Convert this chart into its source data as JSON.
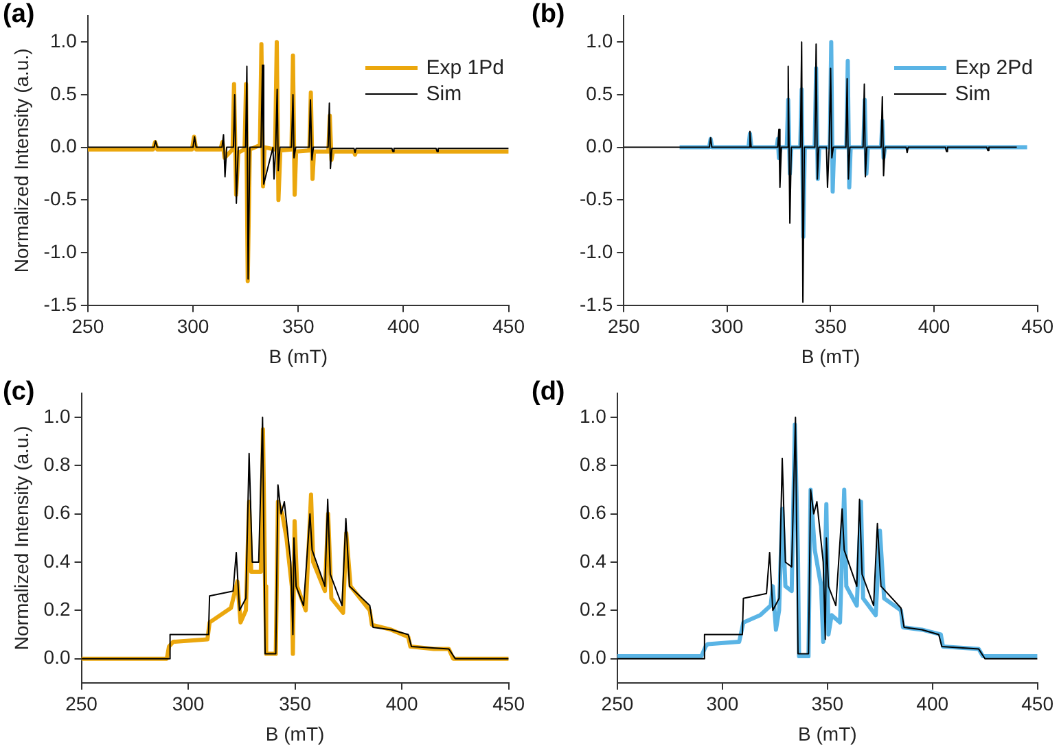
{
  "chart_data": [
    {
      "type": "line",
      "title": "(a)",
      "xlabel": "B (mT)",
      "ylabel": "Normalized Intensity (a.u.)",
      "xlim": [
        250,
        450
      ],
      "xticks": [
        250,
        300,
        350,
        400,
        450
      ],
      "ylim": [
        -1.5,
        1.25
      ],
      "yticks": [
        {
          "value": -1.5,
          "label": "-1.5"
        },
        {
          "value": -1,
          "label": "-1.0"
        },
        {
          "value": -0.5,
          "label": "-0.5"
        },
        {
          "value": 0,
          "label": "0.0"
        },
        {
          "value": 0.5,
          "label": "0.5"
        },
        {
          "value": 1,
          "label": "1.0"
        }
      ],
      "grid": false,
      "legend": "top right",
      "series": [
        {
          "name": "Exp 1Pd",
          "color": "#eba70d",
          "x": [
            250,
            281,
            282,
            283,
            299.5,
            300.5,
            301.5,
            313,
            314,
            315,
            318.8,
            319.5,
            320.5,
            321.5,
            324.5,
            325.2,
            326,
            327,
            331.8,
            332.5,
            333.3,
            334,
            339,
            339.8,
            340.6,
            341.5,
            346.8,
            347.5,
            348.3,
            349,
            355.3,
            356,
            356.8,
            357.5,
            364.3,
            365,
            365.8,
            366.5,
            376.5,
            377,
            377.5,
            450
          ],
          "values": [
            -0.02,
            -0.02,
            0.05,
            -0.02,
            -0.02,
            0.1,
            -0.02,
            -0.02,
            0.05,
            -0.1,
            -0.02,
            0.6,
            -0.45,
            -0.05,
            -0.02,
            0.6,
            -1.27,
            -0.02,
            0.02,
            0.98,
            -0.37,
            0,
            -0.02,
            1.0,
            -0.5,
            -0.03,
            -0.02,
            0.87,
            -0.45,
            -0.04,
            -0.03,
            0.52,
            -0.3,
            -0.04,
            -0.04,
            0.3,
            -0.12,
            -0.04,
            -0.04,
            -0.07,
            -0.04,
            -0.04
          ]
        },
        {
          "name": "Sim",
          "color": "#000000",
          "x": [
            250,
            281.5,
            282.2,
            283,
            300,
            300.7,
            301.5,
            313.8,
            314.5,
            315.2,
            316,
            319.2,
            319.8,
            320.6,
            321.5,
            325,
            325.6,
            326.2,
            327,
            332.3,
            333,
            333.6,
            338,
            338.5,
            339.3,
            340,
            340.5,
            341.3,
            346.8,
            347.5,
            348,
            348.8,
            355.2,
            355.8,
            356.5,
            357.2,
            364.2,
            364.8,
            365.3,
            366,
            376.5,
            377,
            377.5,
            394.5,
            395,
            395.5,
            415.5,
            416,
            416.5,
            450
          ],
          "values": [
            0,
            0,
            0.06,
            0,
            0,
            0.1,
            0,
            0,
            0.12,
            -0.28,
            0,
            0,
            0.5,
            -0.53,
            0,
            0,
            0.77,
            -1.25,
            0,
            0,
            0.78,
            -0.35,
            0,
            -0.3,
            0,
            0.55,
            -0.22,
            0,
            0,
            0.5,
            -0.1,
            0,
            0,
            0.45,
            -0.12,
            0,
            0,
            0.42,
            -0.2,
            -0.01,
            -0.01,
            -0.05,
            -0.01,
            -0.01,
            -0.04,
            -0.01,
            -0.01,
            -0.04,
            -0.01,
            -0.01
          ]
        }
      ]
    },
    {
      "type": "line",
      "title": "(b)",
      "xlabel": "B (mT)",
      "xlim": [
        250,
        450
      ],
      "xticks": [
        250,
        300,
        350,
        400,
        450
      ],
      "ylim": [
        -1.5,
        1.25
      ],
      "yticks": [
        {
          "value": -1.5,
          "label": "-1.5"
        },
        {
          "value": -1,
          "label": "-1.0"
        },
        {
          "value": -0.5,
          "label": "-0.5"
        },
        {
          "value": 0,
          "label": "0.0"
        },
        {
          "value": 0.5,
          "label": "0.5"
        },
        {
          "value": 1,
          "label": "1.0"
        }
      ],
      "grid": false,
      "legend": "top right",
      "series": [
        {
          "name": "Exp 2Pd",
          "color": "#5ab4e5",
          "x": [
            277,
            291.3,
            292,
            292.7,
            310.3,
            311,
            311.7,
            324,
            324.5,
            325,
            325.7,
            328.8,
            329.5,
            330.3,
            331,
            335.3,
            336,
            336.8,
            337.5,
            342.3,
            343,
            343.8,
            344.5,
            349.6,
            350.3,
            351,
            351.7,
            357.6,
            358.3,
            359,
            359.7,
            365.8,
            366.5,
            367.3,
            368,
            374.4,
            375,
            375.6,
            376.3,
            445
          ],
          "values": [
            0,
            0,
            0.08,
            0,
            0,
            0.13,
            0,
            0,
            0.08,
            -0.1,
            0,
            0,
            0.45,
            -0.25,
            0,
            0,
            0.55,
            -0.85,
            0,
            0,
            0.75,
            -0.3,
            0,
            0,
            1.0,
            -0.42,
            0,
            0,
            0.82,
            -0.38,
            0,
            0,
            0.45,
            -0.25,
            0,
            0,
            0.25,
            -0.1,
            0,
            0
          ]
        },
        {
          "name": "Sim",
          "color": "#000000",
          "x": [
            250,
            291.4,
            292,
            292.6,
            310.4,
            311,
            311.6,
            324.4,
            325,
            325.5,
            326.2,
            329,
            329.5,
            330.3,
            331,
            335.4,
            336,
            336.6,
            337.3,
            342.4,
            343,
            343.6,
            344.3,
            348,
            348.5,
            349.3,
            350,
            350.6,
            351.3,
            357.4,
            358,
            358.6,
            359.3,
            365.7,
            366.3,
            366.8,
            367.5,
            374.4,
            375,
            375.6,
            376.3,
            386.5,
            387,
            387.5,
            405.5,
            406,
            406.5,
            425.5,
            426,
            426.5,
            440
          ],
          "values": [
            0,
            0,
            0.09,
            0,
            0,
            0.15,
            0,
            0,
            0.17,
            -0.38,
            0,
            0,
            0.77,
            -0.72,
            0,
            0,
            1.0,
            -1.47,
            0,
            0,
            0.98,
            -0.3,
            0,
            0,
            -0.38,
            0,
            0.75,
            -0.1,
            0,
            0,
            0.65,
            -0.3,
            0,
            0,
            0.6,
            -0.28,
            0,
            0,
            0.48,
            -0.27,
            0,
            0,
            -0.05,
            0,
            0,
            -0.04,
            0,
            0,
            -0.03,
            0,
            0
          ]
        }
      ]
    },
    {
      "type": "line",
      "title": "(c)",
      "xlabel": "B (mT)",
      "ylabel": "Normalized Intensity (a.u.)",
      "xlim": [
        250,
        450
      ],
      "xticks": [
        250,
        300,
        350,
        400,
        450
      ],
      "ylim": [
        -0.1,
        1.1
      ],
      "yticks": [
        {
          "value": 0,
          "label": "0.0"
        },
        {
          "value": 0.2,
          "label": "0.2"
        },
        {
          "value": 0.4,
          "label": "0.4"
        },
        {
          "value": 0.6,
          "label": "0.6"
        },
        {
          "value": 0.8,
          "label": "0.8"
        },
        {
          "value": 1,
          "label": "1.0"
        }
      ],
      "grid": false,
      "series": [
        {
          "color": "#eba70d",
          "x": [
            250,
            290,
            291,
            293,
            309,
            310,
            320,
            323,
            324.5,
            327,
            328.5,
            329.5,
            334,
            335,
            336,
            336.5,
            341,
            342,
            344,
            346,
            348.5,
            349,
            349.8,
            351,
            355,
            357.5,
            358.5,
            364,
            365.5,
            367,
            372.5,
            374,
            376,
            385,
            386,
            395,
            403,
            404,
            415,
            422,
            424,
            450
          ],
          "values": [
            0,
            0,
            0.05,
            0.07,
            0.08,
            0.15,
            0.21,
            0.32,
            0.15,
            0.2,
            0.65,
            0.36,
            0.36,
            0.95,
            0.3,
            0.02,
            0.02,
            0.65,
            0.6,
            0.5,
            0.3,
            0.02,
            0.57,
            0.3,
            0.2,
            0.68,
            0.4,
            0.28,
            0.6,
            0.25,
            0.19,
            0.52,
            0.3,
            0.2,
            0.14,
            0.12,
            0.09,
            0.05,
            0.04,
            0.04,
            0,
            0
          ]
        },
        {
          "color": "#000000",
          "x": [
            250,
            291,
            291.5,
            309.5,
            310,
            321,
            322.5,
            324,
            327,
            328.5,
            330,
            333,
            334.8,
            336,
            341,
            342,
            343.5,
            345,
            348,
            349,
            349.5,
            350.5,
            354,
            357,
            358,
            364,
            365.3,
            366.5,
            372,
            373.8,
            375.5,
            385,
            386.5,
            395,
            403,
            404.5,
            422,
            425,
            450
          ],
          "values": [
            0,
            0,
            0.1,
            0.1,
            0.26,
            0.28,
            0.44,
            0.2,
            0.25,
            0.85,
            0.4,
            0.4,
            1.0,
            0.02,
            0.02,
            0.72,
            0.6,
            0.65,
            0.4,
            0.1,
            0.5,
            0.3,
            0.22,
            0.6,
            0.45,
            0.3,
            0.66,
            0.35,
            0.22,
            0.58,
            0.3,
            0.22,
            0.13,
            0.12,
            0.1,
            0.05,
            0.04,
            0,
            0
          ]
        }
      ]
    },
    {
      "type": "line",
      "title": "(d)",
      "xlabel": "B (mT)",
      "xlim": [
        250,
        450
      ],
      "xticks": [
        250,
        300,
        350,
        400,
        450
      ],
      "ylim": [
        -0.1,
        1.1
      ],
      "yticks": [
        {
          "value": 0,
          "label": "0.0"
        },
        {
          "value": 0.2,
          "label": "0.2"
        },
        {
          "value": 0.4,
          "label": "0.4"
        },
        {
          "value": 0.6,
          "label": "0.6"
        },
        {
          "value": 0.8,
          "label": "0.8"
        },
        {
          "value": 1,
          "label": "1.0"
        }
      ],
      "grid": false,
      "series": [
        {
          "color": "#5ab4e5",
          "x": [
            250,
            290,
            292,
            293,
            308,
            310,
            318,
            323,
            324,
            325.5,
            327,
            328.5,
            330,
            333,
            334.5,
            336,
            336.5,
            341,
            342,
            344,
            347,
            348,
            349.5,
            350.5,
            352,
            356,
            358,
            359,
            364,
            366,
            367,
            373,
            375,
            377,
            385,
            386,
            395,
            404,
            405,
            422,
            424,
            450
          ],
          "values": [
            0.01,
            0.01,
            0.05,
            0.06,
            0.07,
            0.15,
            0.18,
            0.22,
            0.3,
            0.12,
            0.2,
            0.62,
            0.3,
            0.28,
            0.97,
            0.42,
            0.01,
            0.01,
            0.7,
            0.45,
            0.3,
            0.07,
            0.64,
            0.1,
            0.18,
            0.15,
            0.7,
            0.3,
            0.22,
            0.65,
            0.25,
            0.18,
            0.53,
            0.25,
            0.2,
            0.13,
            0.12,
            0.1,
            0.05,
            0.04,
            0.01,
            0.01
          ]
        },
        {
          "color": "#000000",
          "x": [
            250,
            291,
            291.5,
            309.5,
            310,
            321,
            322.5,
            324,
            327,
            328.5,
            330,
            333,
            334.8,
            336,
            341,
            342,
            343.5,
            345,
            348,
            349,
            349.5,
            350.5,
            354,
            357,
            358,
            364,
            365.3,
            366.5,
            372,
            373.8,
            375.5,
            385,
            386.5,
            395,
            403,
            404.5,
            422,
            425,
            450
          ],
          "values": [
            0,
            0,
            0.1,
            0.1,
            0.25,
            0.27,
            0.44,
            0.2,
            0.25,
            0.83,
            0.4,
            0.38,
            1.0,
            0.02,
            0.02,
            0.7,
            0.6,
            0.65,
            0.4,
            0.08,
            0.5,
            0.3,
            0.22,
            0.62,
            0.45,
            0.3,
            0.66,
            0.35,
            0.22,
            0.56,
            0.3,
            0.21,
            0.13,
            0.12,
            0.1,
            0.05,
            0.04,
            0,
            0
          ]
        }
      ]
    }
  ]
}
